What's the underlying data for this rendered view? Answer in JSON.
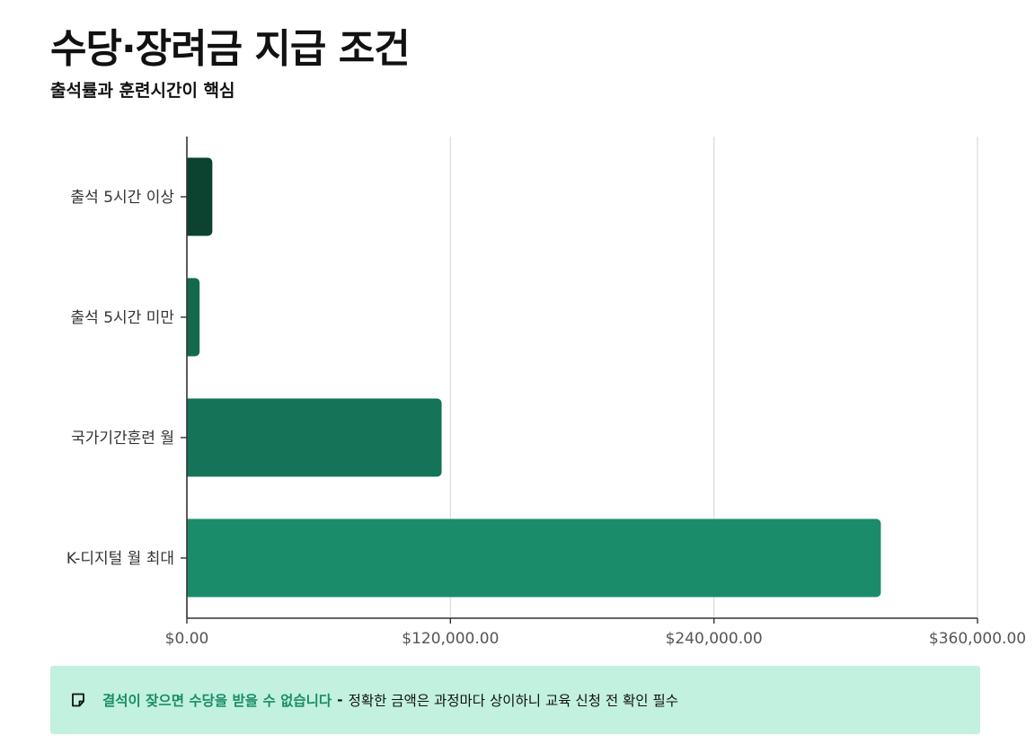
{
  "header": {
    "title": "수당·장려금 지급 조건",
    "subtitle": "출석률과 훈련시간이 핵심"
  },
  "chart_data": {
    "type": "bar",
    "orientation": "horizontal",
    "categories": [
      "출석 5시간 이상",
      "출석 5시간 미만",
      "국가기간훈련 월",
      "K-디지털 월 최대"
    ],
    "values": [
      11600,
      5800,
      116000,
      316000
    ],
    "colors": [
      "#0b4330",
      "#14694d",
      "#157357",
      "#1b8c69"
    ],
    "xlim": [
      0,
      360000
    ],
    "xticks": [
      0,
      120000,
      240000,
      360000
    ],
    "xtick_labels": [
      "$0.00",
      "$120,000.00",
      "$240,000.00",
      "$360,000.00"
    ],
    "grid": true,
    "title": "",
    "xlabel": "",
    "ylabel": ""
  },
  "note": {
    "icon": "note-icon",
    "strong": "결석이 잦으면 수당을 받을 수 없습니다",
    "separator": "-",
    "text": "정확한 금액은 과정마다 상이하니 교육 신청 전 확인 필수",
    "accent": "#1a8c66",
    "background": "#c2f1e0"
  }
}
